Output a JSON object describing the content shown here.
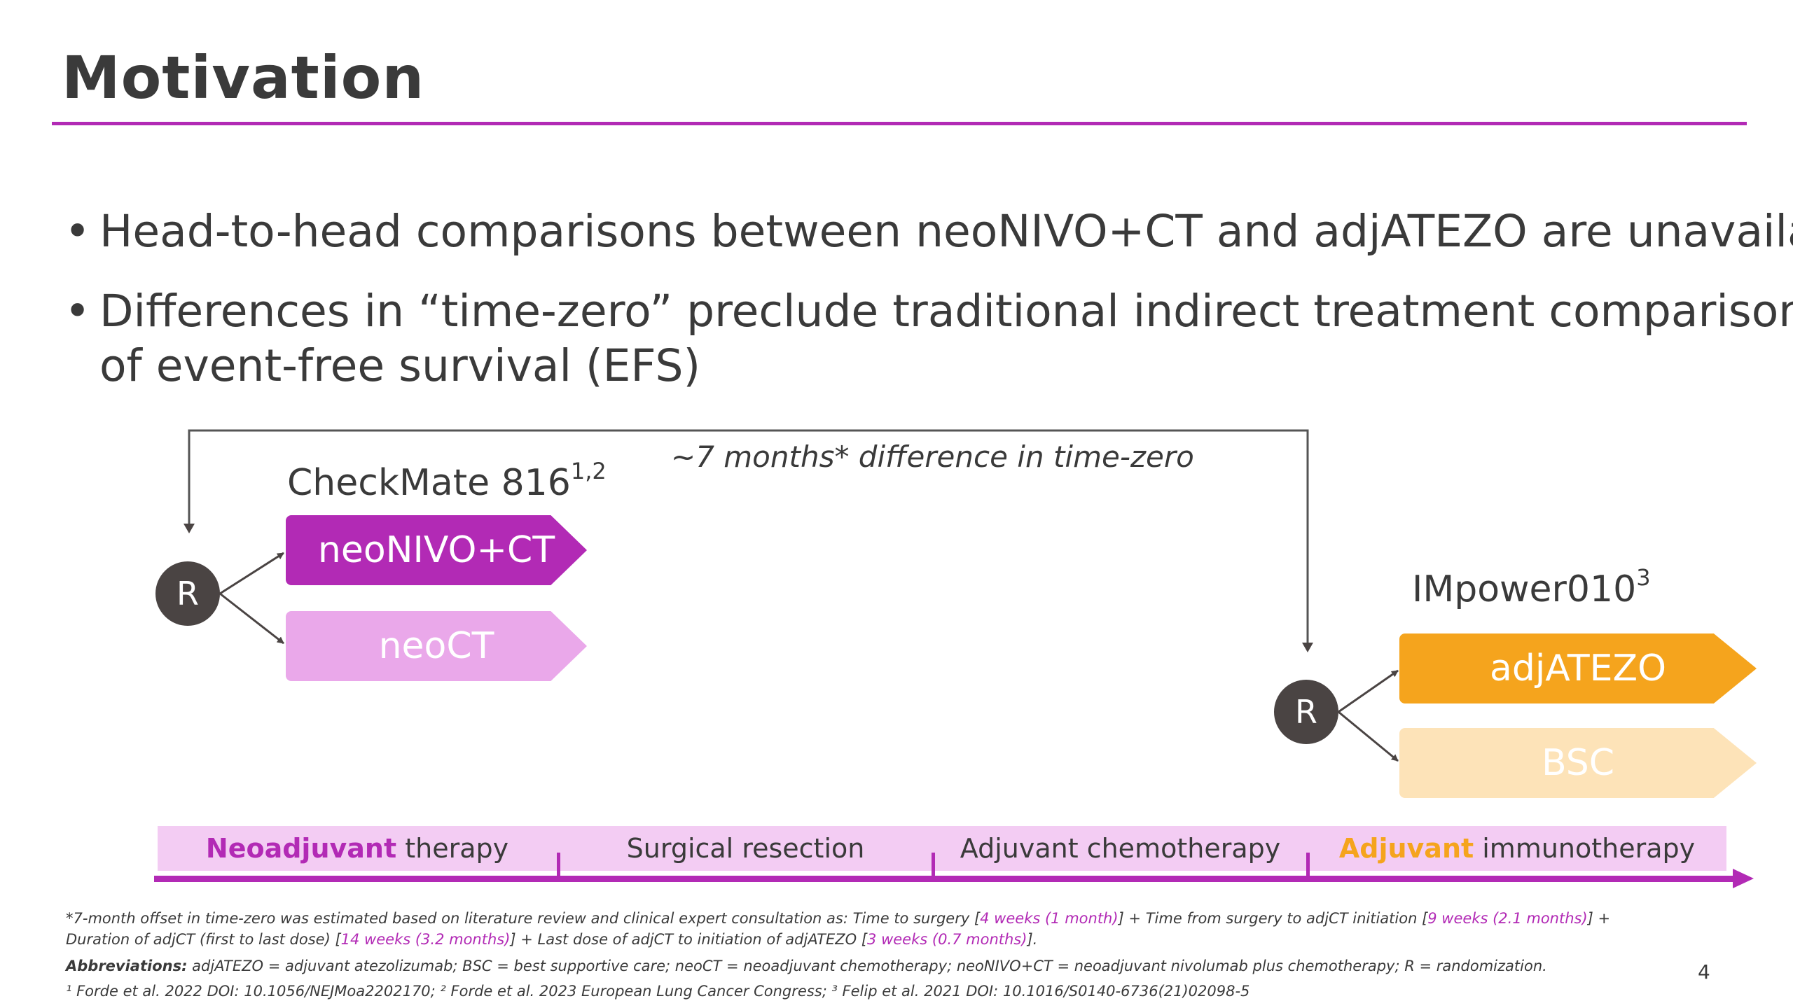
{
  "slide": {
    "title": "Motivation",
    "accent_color": "#b22ab5",
    "page_number": "4"
  },
  "bullets": [
    {
      "marker": "•",
      "lines": [
        "Head-to-head comparisons between neoNIVO+CT and adjATEZO are unavailable"
      ]
    },
    {
      "marker": "•",
      "lines": [
        "Differences in “time-zero” preclude traditional indirect treatment comparisons",
        "of event-free survival (EFS)"
      ]
    }
  ],
  "diagram": {
    "time_zero_note": "~7 months* difference in time-zero",
    "trial1": {
      "name": "CheckMate 816",
      "superscript": "1,2",
      "randomization": "R",
      "arm1": {
        "label": "neoNIVO+CT",
        "color": "#b22ab5"
      },
      "arm2": {
        "label": "neoCT",
        "color": "#eaa8ea"
      }
    },
    "trial2": {
      "name": "IMpower010",
      "superscript": "3",
      "randomization": "R",
      "arm1": {
        "label": "adjATEZO",
        "color": "#f5a41d"
      },
      "arm2": {
        "label": "BSC",
        "color": "#fde3b8"
      }
    },
    "phases": [
      {
        "highlight": "Neoadjuvant",
        "rest": " therapy"
      },
      {
        "highlight": "",
        "rest": "Surgical resection"
      },
      {
        "highlight": "",
        "rest": "Adjuvant chemotherapy"
      },
      {
        "highlight": "Adjuvant",
        "rest": " immunotherapy"
      }
    ]
  },
  "footnotes": {
    "offset_p1": "*7-month offset in time-zero was estimated based on literature review and clinical expert consultation as: Time to surgery [",
    "offset_v1": "4 weeks (1 month)",
    "offset_p2": "] + Time from surgery to adjCT initiation [",
    "offset_v2": "9 weeks (2.1 months)",
    "offset_p3": "] +",
    "offset_p4": "Duration of adjCT (first to last dose) [",
    "offset_v3": "14 weeks (3.2 months)",
    "offset_p5": "] + Last dose of adjCT to initiation of adjATEZO [",
    "offset_v4": "3 weeks (0.7 months)",
    "offset_p6": "].",
    "abbrev_label": "Abbreviations:",
    "abbrev_text": " adjATEZO = adjuvant atezolizumab; BSC = best supportive care; neoCT = neoadjuvant chemotherapy; neoNIVO+CT = neoadjuvant nivolumab plus chemotherapy; R = randomization.",
    "references": "¹ Forde et al. 2022 DOI: 10.1056/NEJMoa2202170; ² Forde et al. 2023 European Lung Cancer Congress; ³ Felip et al. 2021 DOI: 10.1016/S0140-6736(21)02098-5"
  }
}
